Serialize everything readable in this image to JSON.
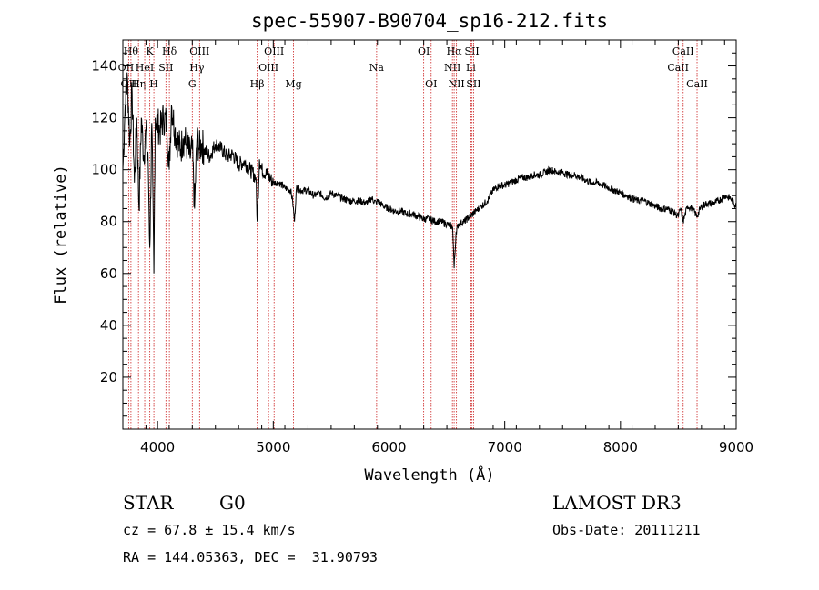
{
  "chart_data": {
    "type": "line",
    "title": "spec-55907-B90704_sp16-212.fits",
    "xlabel": "Wavelength (Å)",
    "ylabel": "Flux (relative)",
    "xlim": [
      3700,
      9000
    ],
    "ylim": [
      0,
      150
    ],
    "xticks": [
      4000,
      5000,
      6000,
      7000,
      8000,
      9000
    ],
    "yticks": [
      20,
      40,
      60,
      80,
      100,
      120,
      140
    ],
    "grid": false,
    "series": [
      {
        "x": [
          3700,
          3720,
          3740,
          3760,
          3780,
          3800,
          3820,
          3840,
          3860,
          3880,
          3900,
          3920,
          3933,
          3950,
          3968,
          3980,
          4000,
          4020,
          4050,
          4080,
          4101,
          4120,
          4150,
          4180,
          4200,
          4220,
          4250,
          4280,
          4300,
          4320,
          4340,
          4360,
          4380,
          4400,
          4450,
          4500,
          4550,
          4600,
          4650,
          4700,
          4750,
          4800,
          4850,
          4861,
          4880,
          4900,
          4950,
          5000,
          5050,
          5100,
          5150,
          5167,
          5183,
          5200,
          5250,
          5300,
          5350,
          5400,
          5450,
          5500,
          5550,
          5600,
          5650,
          5700,
          5750,
          5800,
          5850,
          5890,
          5900,
          5950,
          6000,
          6050,
          6100,
          6150,
          6200,
          6250,
          6300,
          6350,
          6400,
          6450,
          6500,
          6550,
          6563,
          6580,
          6600,
          6650,
          6700,
          6750,
          6800,
          6850,
          6900,
          6950,
          7000,
          7050,
          7100,
          7150,
          7200,
          7250,
          7300,
          7350,
          7400,
          7450,
          7500,
          7550,
          7600,
          7650,
          7700,
          7750,
          7800,
          7850,
          7900,
          7950,
          8000,
          8050,
          8100,
          8150,
          8200,
          8250,
          8300,
          8350,
          8400,
          8450,
          8498,
          8520,
          8542,
          8580,
          8620,
          8662,
          8700,
          8750,
          8800,
          8850,
          8900,
          8950,
          9000
        ],
        "y": [
          100,
          125,
          135,
          110,
          130,
          95,
          120,
          85,
          120,
          105,
          115,
          100,
          70,
          118,
          60,
          120,
          118,
          115,
          120,
          118,
          100,
          125,
          115,
          110,
          108,
          112,
          110,
          105,
          108,
          85,
          112,
          108,
          110,
          108,
          105,
          110,
          108,
          105,
          106,
          102,
          103,
          100,
          97,
          80,
          104,
          100,
          98,
          95,
          95,
          93,
          92,
          88,
          80,
          93,
          92,
          92,
          90,
          91,
          89,
          91,
          90,
          89,
          88,
          88,
          88,
          87,
          89,
          87,
          88,
          86,
          85,
          84,
          84,
          83,
          83,
          82,
          81,
          81,
          80,
          80,
          79,
          78,
          62,
          76,
          79,
          80,
          82,
          84,
          86,
          88,
          92,
          94,
          94,
          95,
          96,
          97,
          97,
          98,
          98,
          99,
          100,
          99,
          99,
          98,
          98,
          97,
          96,
          95,
          95,
          94,
          93,
          92,
          91,
          90,
          89,
          88,
          88,
          87,
          86,
          85,
          85,
          84,
          82,
          85,
          80,
          86,
          85,
          82,
          86,
          87,
          87,
          88,
          90,
          89,
          86
        ]
      }
    ],
    "lines": [
      {
        "wl": 3727,
        "label": "OII",
        "row": 2
      },
      {
        "wl": 3750,
        "label": "OII",
        "row": 3
      },
      {
        "wl": 3770,
        "label": "Hθ",
        "row": 1
      },
      {
        "wl": 3835,
        "label": "Hη",
        "row": 3
      },
      {
        "wl": 3889,
        "label": "HeI",
        "row": 2
      },
      {
        "wl": 3933,
        "label": "K",
        "row": 1
      },
      {
        "wl": 3968,
        "label": "H",
        "row": 3
      },
      {
        "wl": 4072,
        "label": "SII",
        "row": 2
      },
      {
        "wl": 4102,
        "label": "Hδ",
        "row": 1
      },
      {
        "wl": 4300,
        "label": "G",
        "row": 3
      },
      {
        "wl": 4340,
        "label": "Hγ",
        "row": 2
      },
      {
        "wl": 4363,
        "label": "OIII",
        "row": 1
      },
      {
        "wl": 4861,
        "label": "Hβ",
        "row": 3
      },
      {
        "wl": 4959,
        "label": "OIII",
        "row": 2
      },
      {
        "wl": 5007,
        "label": "OIII",
        "row": 1
      },
      {
        "wl": 5175,
        "label": "Mg",
        "row": 3
      },
      {
        "wl": 5893,
        "label": "Na",
        "row": 2
      },
      {
        "wl": 6300,
        "label": "OI",
        "row": 1
      },
      {
        "wl": 6364,
        "label": "OI",
        "row": 3
      },
      {
        "wl": 6548,
        "label": "NII",
        "row": 2
      },
      {
        "wl": 6563,
        "label": "Hα",
        "row": 1
      },
      {
        "wl": 6583,
        "label": "NII",
        "row": 3
      },
      {
        "wl": 6707,
        "label": "Li",
        "row": 2
      },
      {
        "wl": 6717,
        "label": "SII",
        "row": 1
      },
      {
        "wl": 6731,
        "label": "SII",
        "row": 3
      },
      {
        "wl": 8498,
        "label": "CaII",
        "row": 2
      },
      {
        "wl": 8542,
        "label": "CaII",
        "row": 1
      },
      {
        "wl": 8662,
        "label": "CaII",
        "row": 3
      }
    ]
  },
  "info": {
    "class": "STAR",
    "subclass": "G0",
    "survey": "LAMOST DR3",
    "cz": "cz = 67.8 ± 15.4 km/s",
    "obs_date": "Obs-Date: 20111211",
    "coords": "RA = 144.05363, DEC =  31.90793"
  }
}
